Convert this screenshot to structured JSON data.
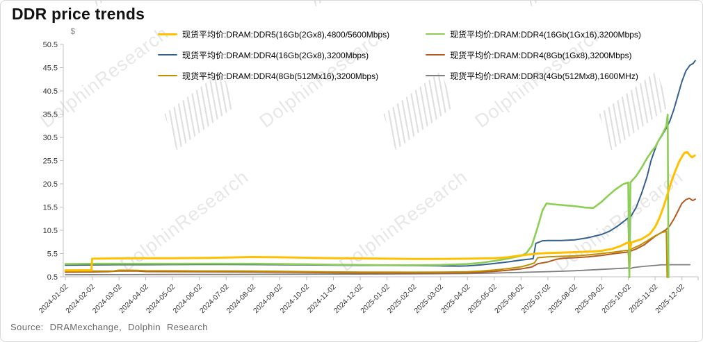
{
  "title": "DDR price trends",
  "source": "Source:  DRAMexchange,  Dolphin  Research",
  "watermark": {
    "text": "DolphinResearch"
  },
  "chart_data": {
    "type": "line",
    "title": "DDR price trends",
    "xlabel": "",
    "ylabel": "$",
    "ylim": [
      0.5,
      50.5
    ],
    "grid": false,
    "legend_position": "top",
    "y_ticks": [
      0.5,
      5.5,
      10.5,
      15.5,
      20.5,
      25.5,
      30.5,
      35.5,
      40.5,
      45.5,
      50.5
    ],
    "x_tick_labels": [
      "2024-01-02",
      "2024-02-02",
      "2024-03-02",
      "2024-04-02",
      "2024-05-02",
      "2024-06-02",
      "2024-07-02",
      "2024-08-02",
      "2024-09-02",
      "2024-10-02",
      "2024-11-02",
      "2024-12-02",
      "2025-01-02",
      "2025-02-02",
      "2025-03-02",
      "2025-04-02",
      "2025-05-02",
      "2025-06-02",
      "2025-07-02",
      "2025-08-02",
      "2025-09-02",
      "2025-10-02",
      "2025-11-02",
      "2025-12-02"
    ],
    "x_unit": "months since 2024-01-02 (fractional = days within month)",
    "legend_columns": [
      [
        "ddr5-16gb",
        "ddr4-16gb-2gx8",
        "ddr4-8gb-512mx16"
      ],
      [
        "ddr4-16gb-1gx16",
        "ddr4-8gb-1gx8",
        "ddr3-4gb"
      ]
    ],
    "series": [
      {
        "id": "ddr3-4gb",
        "name": "现货平均价:DRAM:DDR3(4Gb(512Mx8),1600MHz)",
        "color": "#7F7F7F",
        "line_width": 1.8,
        "points": [
          [
            0,
            0.95
          ],
          [
            2,
            0.97
          ],
          [
            4,
            1.0
          ],
          [
            6,
            1.0
          ],
          [
            8,
            1.05
          ],
          [
            10,
            1.08
          ],
          [
            12,
            1.1
          ],
          [
            14,
            1.15
          ],
          [
            15,
            1.2
          ],
          [
            16,
            1.3
          ],
          [
            17,
            1.45
          ],
          [
            18,
            1.6
          ],
          [
            18.5,
            1.7
          ],
          [
            19,
            1.8
          ],
          [
            19.5,
            1.95
          ],
          [
            20,
            2.1
          ],
          [
            20.5,
            2.25
          ],
          [
            21,
            2.4
          ],
          [
            21.06,
            2.25
          ],
          [
            21.2,
            2.5
          ],
          [
            21.6,
            2.75
          ],
          [
            22,
            2.95
          ],
          [
            22.2,
            3.05
          ],
          [
            22.5,
            3.1
          ],
          [
            23,
            3.1
          ],
          [
            23.3,
            3.1
          ]
        ]
      },
      {
        "id": "ddr4-8gb-1gx8",
        "name": "现货平均价:DRAM:DDR4(8Gb(1Gx8),3200Mbps)",
        "color": "#B35A21",
        "line_width": 2,
        "points": [
          [
            0,
            1.5
          ],
          [
            0.6,
            1.55
          ],
          [
            1,
            1.55
          ],
          [
            1.6,
            1.6
          ],
          [
            2,
            1.76
          ],
          [
            2.7,
            1.74
          ],
          [
            3,
            1.62
          ],
          [
            4,
            1.6
          ],
          [
            5,
            1.58
          ],
          [
            6,
            1.56
          ],
          [
            7,
            1.55
          ],
          [
            8,
            1.5
          ],
          [
            9,
            1.42
          ],
          [
            10,
            1.35
          ],
          [
            11,
            1.3
          ],
          [
            12,
            1.3
          ],
          [
            13,
            1.28
          ],
          [
            14,
            1.3
          ],
          [
            15,
            1.36
          ],
          [
            15.5,
            1.5
          ],
          [
            16,
            1.66
          ],
          [
            16.5,
            1.9
          ],
          [
            17,
            2.2
          ],
          [
            17.4,
            2.6
          ],
          [
            17.62,
            3.3
          ],
          [
            18,
            3.7
          ],
          [
            18.3,
            4.25
          ],
          [
            18.6,
            4.5
          ],
          [
            19,
            4.6
          ],
          [
            19.5,
            4.8
          ],
          [
            20,
            5.1
          ],
          [
            20.5,
            5.5
          ],
          [
            21,
            5.85
          ],
          [
            21.3,
            6.5
          ],
          [
            21.6,
            7.4
          ],
          [
            21.8,
            8.3
          ],
          [
            22,
            9.2
          ],
          [
            22.2,
            9.9
          ],
          [
            22.4,
            10.6
          ],
          [
            22.55,
            11.5
          ],
          [
            22.7,
            12.9
          ],
          [
            22.85,
            14.6
          ],
          [
            23,
            16.3
          ],
          [
            23.15,
            17.1
          ],
          [
            23.28,
            17.4
          ],
          [
            23.4,
            16.9
          ],
          [
            23.5,
            17.2
          ]
        ]
      },
      {
        "id": "ddr4-8gb-512mx16",
        "name": "现货平均价:DRAM:DDR4(8Gb(512Mx16),3200Mbps)",
        "color": "#BF9000",
        "line_width": 2,
        "points": [
          [
            0,
            1.7
          ],
          [
            1,
            1.72
          ],
          [
            1.8,
            1.75
          ],
          [
            2,
            1.92
          ],
          [
            2.6,
            1.9
          ],
          [
            3,
            1.8
          ],
          [
            4,
            1.78
          ],
          [
            5,
            1.76
          ],
          [
            6,
            1.75
          ],
          [
            7,
            1.73
          ],
          [
            8,
            1.68
          ],
          [
            9,
            1.6
          ],
          [
            10,
            1.55
          ],
          [
            11,
            1.52
          ],
          [
            12,
            1.5
          ],
          [
            13,
            1.48
          ],
          [
            14,
            1.5
          ],
          [
            15,
            1.58
          ],
          [
            15.5,
            1.72
          ],
          [
            16,
            1.95
          ],
          [
            16.5,
            2.25
          ],
          [
            17,
            2.65
          ],
          [
            17.3,
            3.1
          ],
          [
            17.5,
            3.5
          ],
          [
            17.62,
            4.6
          ],
          [
            18,
            4.8
          ],
          [
            18.5,
            4.9
          ],
          [
            19,
            5.0
          ],
          [
            19.5,
            5.2
          ],
          [
            20,
            5.5
          ],
          [
            20.5,
            5.85
          ],
          [
            20.9,
            6.15
          ],
          [
            21,
            6.2
          ],
          [
            21.04,
            0.4
          ],
          [
            21.08,
            6.4
          ],
          [
            21.4,
            7.2
          ],
          [
            21.7,
            8.2
          ],
          [
            22,
            9.3
          ],
          [
            22.2,
            9.9
          ],
          [
            22.42,
            10.3
          ],
          [
            22.45,
            0.4
          ]
        ]
      },
      {
        "id": "ddr4-16gb-2gx8",
        "name": "现货平均价:DRAM:DDR4(16Gb(2Gx8),3200Mbps)",
        "color": "#36608E",
        "line_width": 2,
        "points": [
          [
            0,
            3.0
          ],
          [
            1,
            3.05
          ],
          [
            2,
            3.1
          ],
          [
            3,
            3.1
          ],
          [
            4,
            3.12
          ],
          [
            5,
            3.15
          ],
          [
            6,
            3.15
          ],
          [
            7,
            3.12
          ],
          [
            8,
            3.1
          ],
          [
            9,
            3.05
          ],
          [
            10,
            3.0
          ],
          [
            11,
            2.95
          ],
          [
            12,
            2.95
          ],
          [
            13,
            2.9
          ],
          [
            14,
            2.85
          ],
          [
            14.7,
            2.8
          ],
          [
            15,
            2.85
          ],
          [
            15.5,
            3.05
          ],
          [
            16,
            3.35
          ],
          [
            16.5,
            3.7
          ],
          [
            17,
            4.1
          ],
          [
            17.45,
            4.4
          ],
          [
            17.55,
            7.7
          ],
          [
            17.8,
            8.25
          ],
          [
            18,
            8.3
          ],
          [
            18.5,
            8.3
          ],
          [
            19,
            8.45
          ],
          [
            19.5,
            8.9
          ],
          [
            20,
            9.6
          ],
          [
            20.3,
            10.3
          ],
          [
            20.6,
            11.4
          ],
          [
            20.85,
            12.5
          ],
          [
            21,
            13.2
          ],
          [
            21.04,
            0.5
          ],
          [
            21.08,
            13.3
          ],
          [
            21.3,
            15.5
          ],
          [
            21.5,
            18.5
          ],
          [
            21.7,
            22
          ],
          [
            21.85,
            25.5
          ],
          [
            22,
            28
          ],
          [
            22.1,
            29.5
          ],
          [
            22.25,
            30.8
          ],
          [
            22.4,
            32.3
          ],
          [
            22.55,
            34
          ],
          [
            22.7,
            36.5
          ],
          [
            22.85,
            39.5
          ],
          [
            23,
            42.5
          ],
          [
            23.15,
            44.8
          ],
          [
            23.3,
            46
          ],
          [
            23.42,
            46.4
          ],
          [
            23.5,
            47
          ]
        ]
      },
      {
        "id": "ddr4-16gb-1gx16",
        "name": "现货平均价:DRAM:DDR4(16Gb(1Gx16),3200Mbps)",
        "color": "#8CCE54",
        "line_width": 2.6,
        "points": [
          [
            0,
            3.25
          ],
          [
            1,
            3.3
          ],
          [
            2,
            3.3
          ],
          [
            3,
            3.3
          ],
          [
            4,
            3.3
          ],
          [
            5,
            3.32
          ],
          [
            6,
            3.3
          ],
          [
            7,
            3.3
          ],
          [
            8,
            3.25
          ],
          [
            9,
            3.2
          ],
          [
            10,
            3.1
          ],
          [
            11,
            3.05
          ],
          [
            12,
            3.0
          ],
          [
            13,
            3.0
          ],
          [
            14,
            3.05
          ],
          [
            15,
            3.25
          ],
          [
            15.5,
            3.5
          ],
          [
            16,
            3.9
          ],
          [
            16.5,
            4.4
          ],
          [
            17,
            5.0
          ],
          [
            17.2,
            5.6
          ],
          [
            17.4,
            7.2
          ],
          [
            17.6,
            10.8
          ],
          [
            17.8,
            14.8
          ],
          [
            17.95,
            16.3
          ],
          [
            18.2,
            16.1
          ],
          [
            18.6,
            15.9
          ],
          [
            19,
            15.7
          ],
          [
            19.4,
            15.4
          ],
          [
            19.7,
            15.3
          ],
          [
            20,
            16.6
          ],
          [
            20.2,
            17.7
          ],
          [
            20.5,
            19.2
          ],
          [
            20.8,
            20.4
          ],
          [
            21,
            20.8
          ],
          [
            21.04,
            0.4
          ],
          [
            21.08,
            20.8
          ],
          [
            21.3,
            22.2
          ],
          [
            21.5,
            24
          ],
          [
            21.7,
            26
          ],
          [
            21.9,
            27.7
          ],
          [
            22,
            28.4
          ],
          [
            22.15,
            30
          ],
          [
            22.3,
            31.5
          ],
          [
            22.42,
            33
          ],
          [
            22.47,
            35.4
          ],
          [
            22.5,
            0.4
          ]
        ]
      },
      {
        "id": "ddr5-16gb",
        "name": "现货平均价:DRAM:DDR5(16Gb(2Gx8),4800/5600Mbps)",
        "color": "#FFC000",
        "line_width": 3,
        "points": [
          [
            0,
            1.9
          ],
          [
            0.5,
            1.9
          ],
          [
            0.97,
            1.9
          ],
          [
            1,
            4.4
          ],
          [
            2,
            4.45
          ],
          [
            3,
            4.5
          ],
          [
            4,
            4.5
          ],
          [
            5,
            4.55
          ],
          [
            6,
            4.65
          ],
          [
            7,
            4.75
          ],
          [
            8,
            4.7
          ],
          [
            9,
            4.6
          ],
          [
            10,
            4.5
          ],
          [
            11,
            4.45
          ],
          [
            12,
            4.4
          ],
          [
            13,
            4.35
          ],
          [
            14,
            4.35
          ],
          [
            15,
            4.4
          ],
          [
            16,
            4.5
          ],
          [
            16.5,
            4.7
          ],
          [
            17,
            5.1
          ],
          [
            17.6,
            5.5
          ],
          [
            18,
            5.6
          ],
          [
            18.5,
            5.7
          ],
          [
            19,
            5.8
          ],
          [
            19.7,
            5.95
          ],
          [
            20,
            6.1
          ],
          [
            20.4,
            6.5
          ],
          [
            20.7,
            7.1
          ],
          [
            20.95,
            7.8
          ],
          [
            21.02,
            7.9
          ],
          [
            21.07,
            6.6
          ],
          [
            21.12,
            7.9
          ],
          [
            21.5,
            8.6
          ],
          [
            21.8,
            9.7
          ],
          [
            22,
            11.2
          ],
          [
            22.15,
            13
          ],
          [
            22.3,
            15.3
          ],
          [
            22.45,
            18
          ],
          [
            22.6,
            20.8
          ],
          [
            22.75,
            23.2
          ],
          [
            22.9,
            25.3
          ],
          [
            23,
            26.3
          ],
          [
            23.1,
            27.2
          ],
          [
            23.2,
            27.3
          ],
          [
            23.3,
            26.6
          ],
          [
            23.38,
            26.2
          ],
          [
            23.48,
            26.6
          ]
        ]
      }
    ]
  }
}
